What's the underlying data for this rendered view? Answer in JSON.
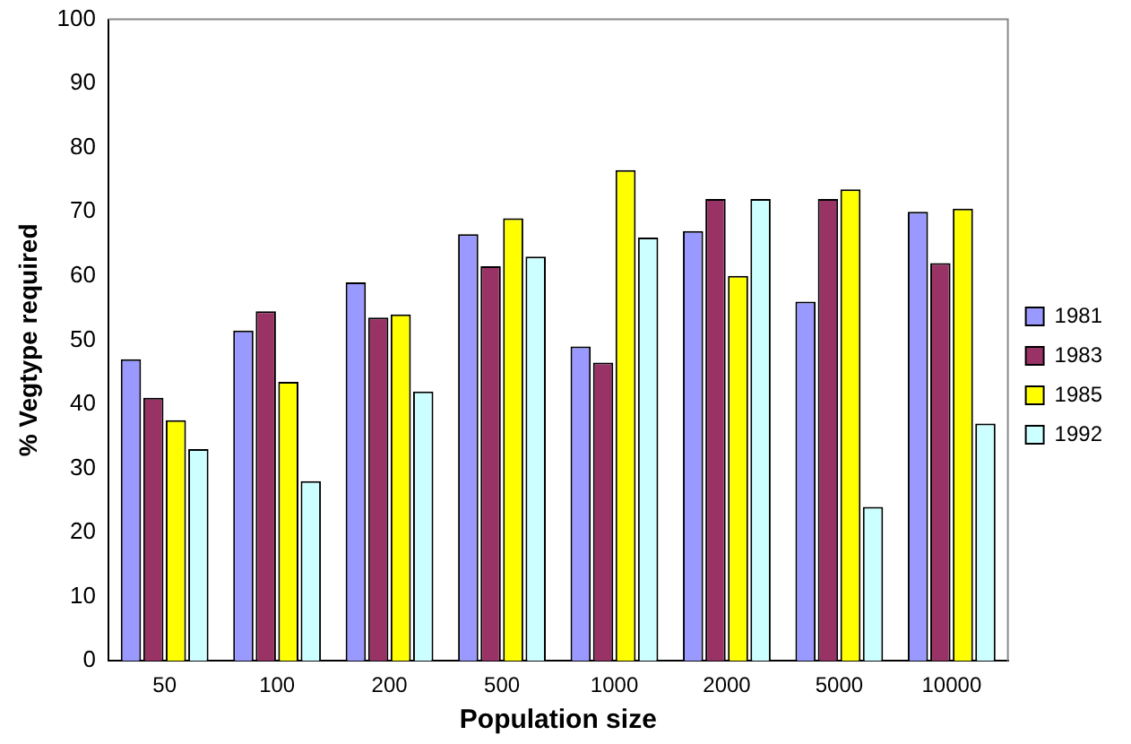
{
  "chart_data": {
    "type": "bar",
    "xlabel": "Population size",
    "ylabel": "% Vegtype required",
    "categories": [
      "50",
      "100",
      "200",
      "500",
      "1000",
      "2000",
      "5000",
      "10000"
    ],
    "series": [
      {
        "name": "1981",
        "color": "#9999ff",
        "values": [
          47,
          51.5,
          59,
          66.5,
          49,
          67,
          56,
          70
        ]
      },
      {
        "name": "1983",
        "color": "#993366",
        "values": [
          41,
          54.5,
          53.5,
          61.5,
          46.5,
          72,
          72,
          62
        ]
      },
      {
        "name": "1985",
        "color": "#ffff00",
        "values": [
          37.5,
          43.5,
          54,
          69,
          76.5,
          60,
          73.5,
          70.5
        ]
      },
      {
        "name": "1992",
        "color": "#ccffff",
        "values": [
          33,
          28,
          42,
          63,
          66,
          72,
          24,
          37
        ]
      }
    ],
    "ylim": [
      0,
      100
    ],
    "yticks": [
      0,
      10,
      20,
      30,
      40,
      50,
      60,
      70,
      80,
      90,
      100
    ],
    "grid": false,
    "legend": "right"
  }
}
